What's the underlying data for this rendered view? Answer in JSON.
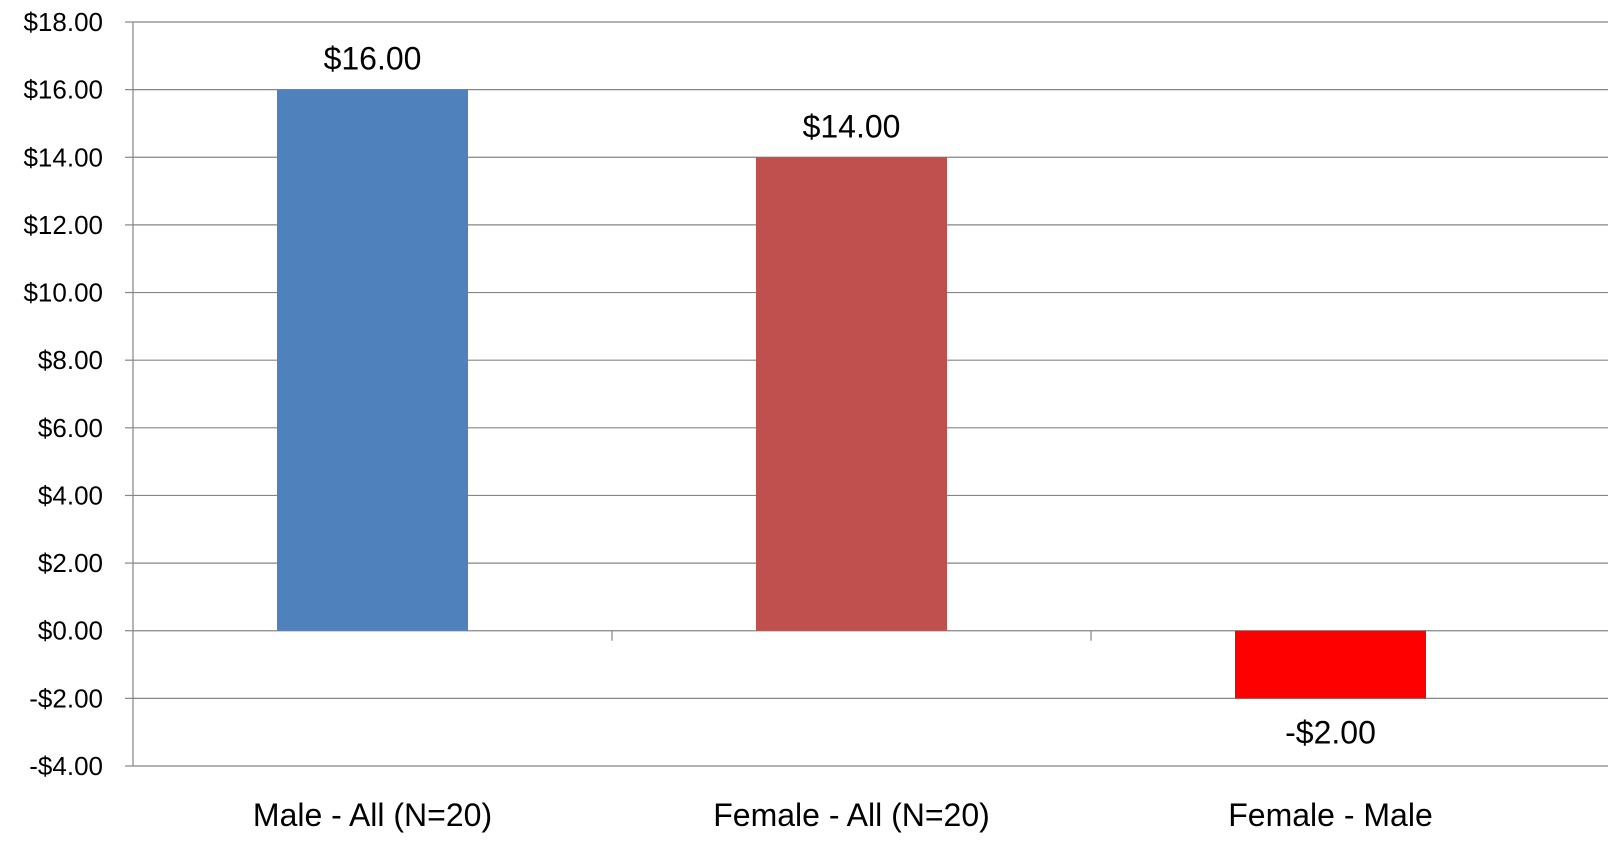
{
  "chart_data": {
    "type": "bar",
    "categories": [
      "Male - All (N=20)",
      "Female - All (N=20)",
      "Female - Male"
    ],
    "values": [
      16,
      14,
      -2
    ],
    "data_labels": [
      "$16.00",
      "$14.00",
      "-$2.00"
    ],
    "bar_colors": [
      "#4f81bd",
      "#c0504d",
      "#ff0000"
    ],
    "ylim": [
      -4,
      18
    ],
    "ytick_values": [
      -4,
      -2,
      0,
      2,
      4,
      6,
      8,
      10,
      12,
      14,
      16,
      18
    ],
    "ytick_labels": [
      "-$4.00",
      "-$2.00",
      "$0.00",
      "$2.00",
      "$4.00",
      "$6.00",
      "$8.00",
      "$10.00",
      "$12.00",
      "$14.00",
      "$16.00",
      "$18.00"
    ],
    "grid": true,
    "legend": "none",
    "title": "",
    "xlabel": "",
    "ylabel": ""
  }
}
